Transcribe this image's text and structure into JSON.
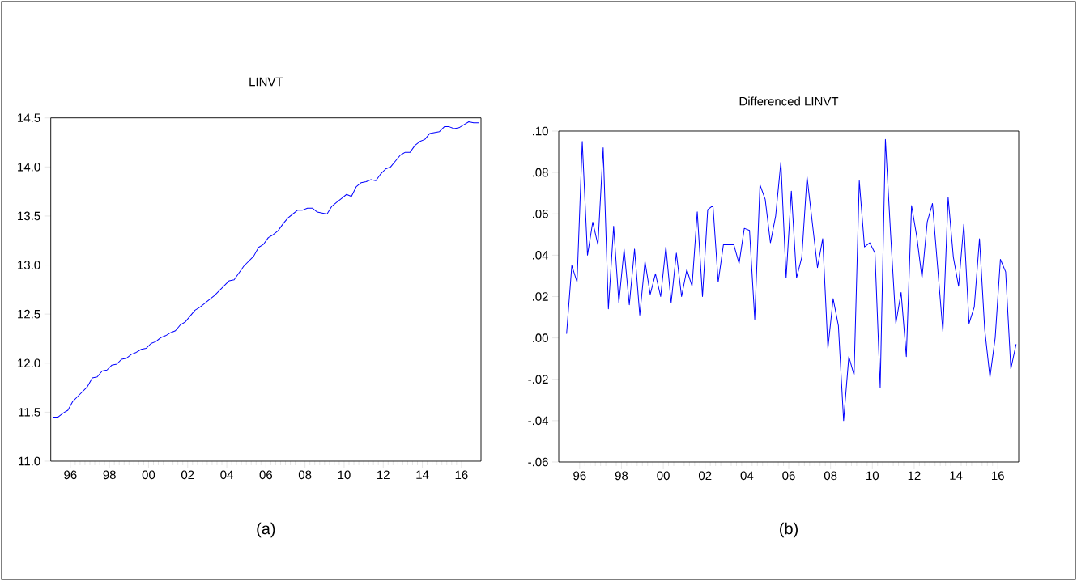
{
  "chart_data": [
    {
      "type": "line",
      "title": "LINVT",
      "annotations": [
        "(a)"
      ],
      "color": "#0000ff",
      "xlim": [
        1995,
        2017
      ],
      "ylim": [
        11.0,
        14.5
      ],
      "xticks": [
        {
          "value": 1996,
          "label": "96"
        },
        {
          "value": 1998,
          "label": "98"
        },
        {
          "value": 2000,
          "label": "00"
        },
        {
          "value": 2002,
          "label": "02"
        },
        {
          "value": 2004,
          "label": "04"
        },
        {
          "value": 2006,
          "label": "06"
        },
        {
          "value": 2008,
          "label": "08"
        },
        {
          "value": 2010,
          "label": "10"
        },
        {
          "value": 2012,
          "label": "12"
        },
        {
          "value": 2014,
          "label": "14"
        },
        {
          "value": 2016,
          "label": "16"
        }
      ],
      "yticks": [
        {
          "value": 11.0,
          "label": "11.0"
        },
        {
          "value": 11.5,
          "label": "11.5"
        },
        {
          "value": 12.0,
          "label": "12.0"
        },
        {
          "value": 12.5,
          "label": "12.5"
        },
        {
          "value": 13.0,
          "label": "13.0"
        },
        {
          "value": 13.5,
          "label": "13.5"
        },
        {
          "value": 14.0,
          "label": "14.0"
        },
        {
          "value": 14.5,
          "label": "14.5"
        }
      ],
      "x": [
        1995.125,
        1995.375,
        1995.625,
        1995.875,
        1996.125,
        1996.375,
        1996.625,
        1996.875,
        1997.125,
        1997.375,
        1997.625,
        1997.875,
        1998.125,
        1998.375,
        1998.625,
        1998.875,
        1999.125,
        1999.375,
        1999.625,
        1999.875,
        2000.125,
        2000.375,
        2000.625,
        2000.875,
        2001.125,
        2001.375,
        2001.625,
        2001.875,
        2002.125,
        2002.375,
        2002.625,
        2002.875,
        2003.125,
        2003.375,
        2003.625,
        2003.875,
        2004.125,
        2004.375,
        2004.625,
        2004.875,
        2005.125,
        2005.375,
        2005.625,
        2005.875,
        2006.125,
        2006.375,
        2006.625,
        2006.875,
        2007.125,
        2007.375,
        2007.625,
        2007.875,
        2008.125,
        2008.375,
        2008.625,
        2008.875,
        2009.125,
        2009.375,
        2009.625,
        2009.875,
        2010.125,
        2010.375,
        2010.625,
        2010.875,
        2011.125,
        2011.375,
        2011.625,
        2011.875,
        2012.125,
        2012.375,
        2012.625,
        2012.875,
        2013.125,
        2013.375,
        2013.625,
        2013.875,
        2014.125,
        2014.375,
        2014.625,
        2014.875,
        2015.125,
        2015.375,
        2015.625,
        2015.875,
        2016.125,
        2016.375,
        2016.625,
        2016.875
      ],
      "values": [
        11.45,
        11.45,
        11.49,
        11.52,
        11.61,
        11.66,
        11.71,
        11.76,
        11.85,
        11.86,
        11.92,
        11.93,
        11.98,
        11.99,
        12.04,
        12.05,
        12.09,
        12.11,
        12.14,
        12.15,
        12.2,
        12.22,
        12.26,
        12.28,
        12.31,
        12.33,
        12.39,
        12.42,
        12.48,
        12.54,
        12.57,
        12.61,
        12.65,
        12.69,
        12.74,
        12.79,
        12.84,
        12.85,
        12.92,
        12.99,
        13.04,
        13.09,
        13.18,
        13.21,
        13.28,
        13.31,
        13.35,
        13.42,
        13.48,
        13.52,
        13.56,
        13.56,
        13.58,
        13.58,
        13.54,
        13.53,
        13.52,
        13.6,
        13.64,
        13.68,
        13.72,
        13.7,
        13.8,
        13.84,
        13.85,
        13.87,
        13.86,
        13.93,
        13.98,
        14.0,
        14.06,
        14.12,
        14.15,
        14.15,
        14.22,
        14.26,
        14.28,
        14.34,
        14.35,
        14.36,
        14.41,
        14.41,
        14.39,
        14.4,
        14.43,
        14.46,
        14.45,
        14.45
      ]
    },
    {
      "type": "line",
      "title": "Differenced LINVT",
      "annotations": [
        "(b)"
      ],
      "color": "#0000ff",
      "xlim": [
        1995,
        2017
      ],
      "ylim": [
        -0.06,
        0.1
      ],
      "xticks": [
        {
          "value": 1996,
          "label": "96"
        },
        {
          "value": 1998,
          "label": "98"
        },
        {
          "value": 2000,
          "label": "00"
        },
        {
          "value": 2002,
          "label": "02"
        },
        {
          "value": 2004,
          "label": "04"
        },
        {
          "value": 2006,
          "label": "06"
        },
        {
          "value": 2008,
          "label": "08"
        },
        {
          "value": 2010,
          "label": "10"
        },
        {
          "value": 2012,
          "label": "12"
        },
        {
          "value": 2014,
          "label": "14"
        },
        {
          "value": 2016,
          "label": "16"
        }
      ],
      "yticks": [
        {
          "value": -0.06,
          "label": "-.06"
        },
        {
          "value": -0.04,
          "label": "-.04"
        },
        {
          "value": -0.02,
          "label": "-.02"
        },
        {
          "value": 0.0,
          "label": ".00"
        },
        {
          "value": 0.02,
          "label": ".02"
        },
        {
          "value": 0.04,
          "label": ".04"
        },
        {
          "value": 0.06,
          "label": ".06"
        },
        {
          "value": 0.08,
          "label": ".08"
        },
        {
          "value": 0.1,
          "label": ".10"
        }
      ],
      "x": [
        1995.375,
        1995.625,
        1995.875,
        1996.125,
        1996.375,
        1996.625,
        1996.875,
        1997.125,
        1997.375,
        1997.625,
        1997.875,
        1998.125,
        1998.375,
        1998.625,
        1998.875,
        1999.125,
        1999.375,
        1999.625,
        1999.875,
        2000.125,
        2000.375,
        2000.625,
        2000.875,
        2001.125,
        2001.375,
        2001.625,
        2001.875,
        2002.125,
        2002.375,
        2002.625,
        2002.875,
        2003.125,
        2003.375,
        2003.625,
        2003.875,
        2004.125,
        2004.375,
        2004.625,
        2004.875,
        2005.125,
        2005.375,
        2005.625,
        2005.875,
        2006.125,
        2006.375,
        2006.625,
        2006.875,
        2007.125,
        2007.375,
        2007.625,
        2007.875,
        2008.125,
        2008.375,
        2008.625,
        2008.875,
        2009.125,
        2009.375,
        2009.625,
        2009.875,
        2010.125,
        2010.375,
        2010.625,
        2010.875,
        2011.125,
        2011.375,
        2011.625,
        2011.875,
        2012.125,
        2012.375,
        2012.625,
        2012.875,
        2013.125,
        2013.375,
        2013.625,
        2013.875,
        2014.125,
        2014.375,
        2014.625,
        2014.875,
        2015.125,
        2015.375,
        2015.625,
        2015.875,
        2016.125,
        2016.375,
        2016.625,
        2016.875
      ],
      "values": [
        0.002,
        0.035,
        0.027,
        0.095,
        0.04,
        0.056,
        0.045,
        0.092,
        0.014,
        0.054,
        0.017,
        0.043,
        0.016,
        0.043,
        0.011,
        0.037,
        0.021,
        0.031,
        0.02,
        0.044,
        0.017,
        0.041,
        0.02,
        0.033,
        0.025,
        0.061,
        0.02,
        0.062,
        0.064,
        0.027,
        0.045,
        0.045,
        0.045,
        0.036,
        0.053,
        0.052,
        0.009,
        0.074,
        0.067,
        0.046,
        0.059,
        0.085,
        0.029,
        0.071,
        0.029,
        0.039,
        0.078,
        0.056,
        0.034,
        0.048,
        -0.005,
        0.019,
        0.006,
        -0.04,
        -0.009,
        -0.018,
        0.076,
        0.044,
        0.046,
        0.041,
        -0.024,
        0.096,
        0.05,
        0.007,
        0.022,
        -0.009,
        0.064,
        0.049,
        0.029,
        0.056,
        0.065,
        0.034,
        0.003,
        0.068,
        0.039,
        0.025,
        0.055,
        0.007,
        0.015,
        0.048,
        0.004,
        -0.019,
        0.0,
        0.038,
        0.032,
        -0.015,
        -0.003
      ]
    }
  ]
}
